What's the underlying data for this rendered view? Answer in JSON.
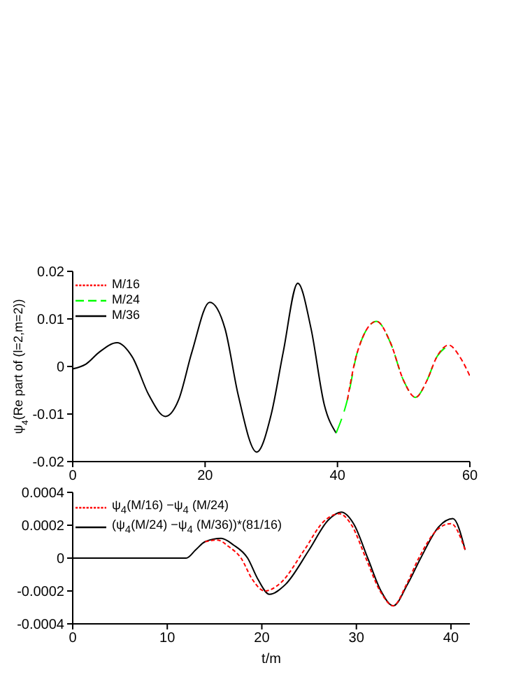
{
  "chart_data": [
    {
      "type": "line",
      "ylabel": "ψ$_{4}$(Re part of (l=2,m=2))",
      "xlim": [
        0,
        60
      ],
      "xticks": [
        0,
        20,
        40,
        60
      ],
      "ylim": [
        -0.02,
        0.02
      ],
      "yticks": [
        -0.02,
        -0.01,
        0,
        0.01,
        0.02
      ],
      "legend": "top left",
      "marker": "none",
      "series": [
        {
          "name": "M/16",
          "color": "#ff0000",
          "line_style": "dotted",
          "x": [
            41.5,
            43,
            45.9,
            48,
            50,
            51.8,
            53.5,
            55,
            56.8,
            58.5,
            60
          ],
          "values": [
            -0.007,
            0.003,
            0.0095,
            0.005,
            -0.003,
            -0.0065,
            -0.003,
            0.002,
            0.0045,
            0.002,
            -0.002
          ]
        },
        {
          "name": "M/24",
          "color": "#00ff00",
          "line_style": "dashed",
          "x": [
            39.8,
            41.5,
            43,
            45.9,
            48,
            50,
            51.8,
            53.5,
            55,
            56.3
          ],
          "values": [
            -0.014,
            -0.007,
            0.003,
            0.0095,
            0.005,
            -0.003,
            -0.0065,
            -0.003,
            0.002,
            0.004
          ]
        },
        {
          "name": "M/36",
          "color": "#000000",
          "line_style": "solid",
          "x": [
            0,
            2,
            4,
            6.7,
            9,
            11.5,
            14,
            16,
            18,
            20.7,
            23,
            25,
            27.8,
            30,
            31.8,
            34,
            36,
            38,
            39.8
          ],
          "values": [
            -0.0005,
            0.0005,
            0.003,
            0.005,
            0.002,
            -0.006,
            -0.0105,
            -0.007,
            0.003,
            0.0135,
            0.008,
            -0.006,
            -0.018,
            -0.01,
            0.003,
            0.0175,
            0.008,
            -0.008,
            -0.014
          ]
        }
      ]
    },
    {
      "type": "line",
      "xlabel": "t/m",
      "xlim": [
        0,
        42
      ],
      "xticks": [
        0,
        10,
        20,
        30,
        40
      ],
      "ylim": [
        -0.0004,
        0.0004
      ],
      "yticks": [
        -0.0004,
        -0.0002,
        0,
        0.0002,
        0.0004
      ],
      "legend": "top left",
      "marker": "none",
      "series": [
        {
          "name": "ψ$_{4}$(M/16) −ψ$_{4}$ (M/24)",
          "color": "#ff0000",
          "line_style": "dotted",
          "x": [
            14,
            15.3,
            16.5,
            17.8,
            19,
            20.3,
            22,
            24.5,
            26.5,
            28.2,
            29.5,
            31,
            32.5,
            33.9,
            35.3,
            36.6,
            38.5,
            40,
            41.5
          ],
          "values": [
            0.0001,
            0.00011,
            7e-05,
            0,
            -0.00013,
            -0.0002,
            -0.00015,
            5e-05,
            0.00022,
            0.00027,
            0.0002,
            0,
            -0.0002,
            -0.00029,
            -0.00016,
            0,
            0.00017,
            0.00021,
            5e-05
          ]
        },
        {
          "name": "(ψ$_{4}$(M/24) −ψ$_{4}$ (M/36))*(81/16)",
          "color": "#000000",
          "line_style": "solid",
          "x": [
            0,
            3,
            5,
            7,
            9,
            11,
            12,
            13,
            14,
            15.7,
            17,
            18.5,
            19.6,
            20.8,
            22.5,
            25,
            27,
            28.4,
            29.7,
            31.2,
            32.6,
            33.9,
            35.4,
            36.8,
            38.7,
            40.2,
            41.5
          ],
          "values": [
            0,
            0,
            0,
            0,
            0,
            0,
            0,
            5e-05,
            0.0001,
            0.00012,
            8e-05,
            0,
            -0.00013,
            -0.00022,
            -0.00016,
            5e-05,
            0.00023,
            0.00028,
            0.00021,
            0,
            -0.0002,
            -0.00029,
            -0.00016,
            0,
            0.00019,
            0.00024,
            5e-05
          ]
        }
      ]
    }
  ]
}
